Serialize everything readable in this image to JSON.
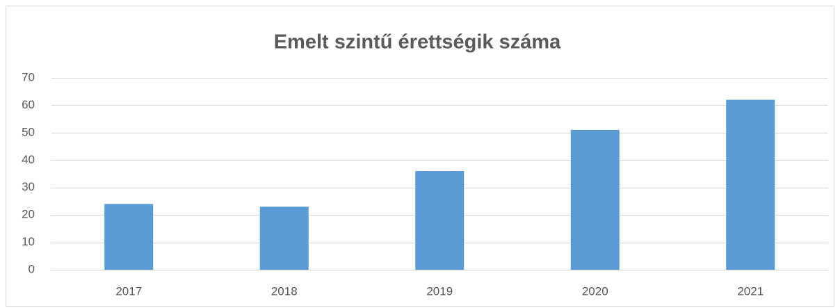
{
  "chart_data": {
    "type": "bar",
    "title": "Emelt szintű érettségik száma",
    "categories": [
      "2017",
      "2018",
      "2019",
      "2020",
      "2021"
    ],
    "values": [
      24,
      23,
      36,
      51,
      62
    ],
    "color": "#5b9bd5",
    "ylim": [
      0,
      70
    ],
    "yticks": [
      0,
      10,
      20,
      30,
      40,
      50,
      60,
      70
    ],
    "grid": true
  }
}
